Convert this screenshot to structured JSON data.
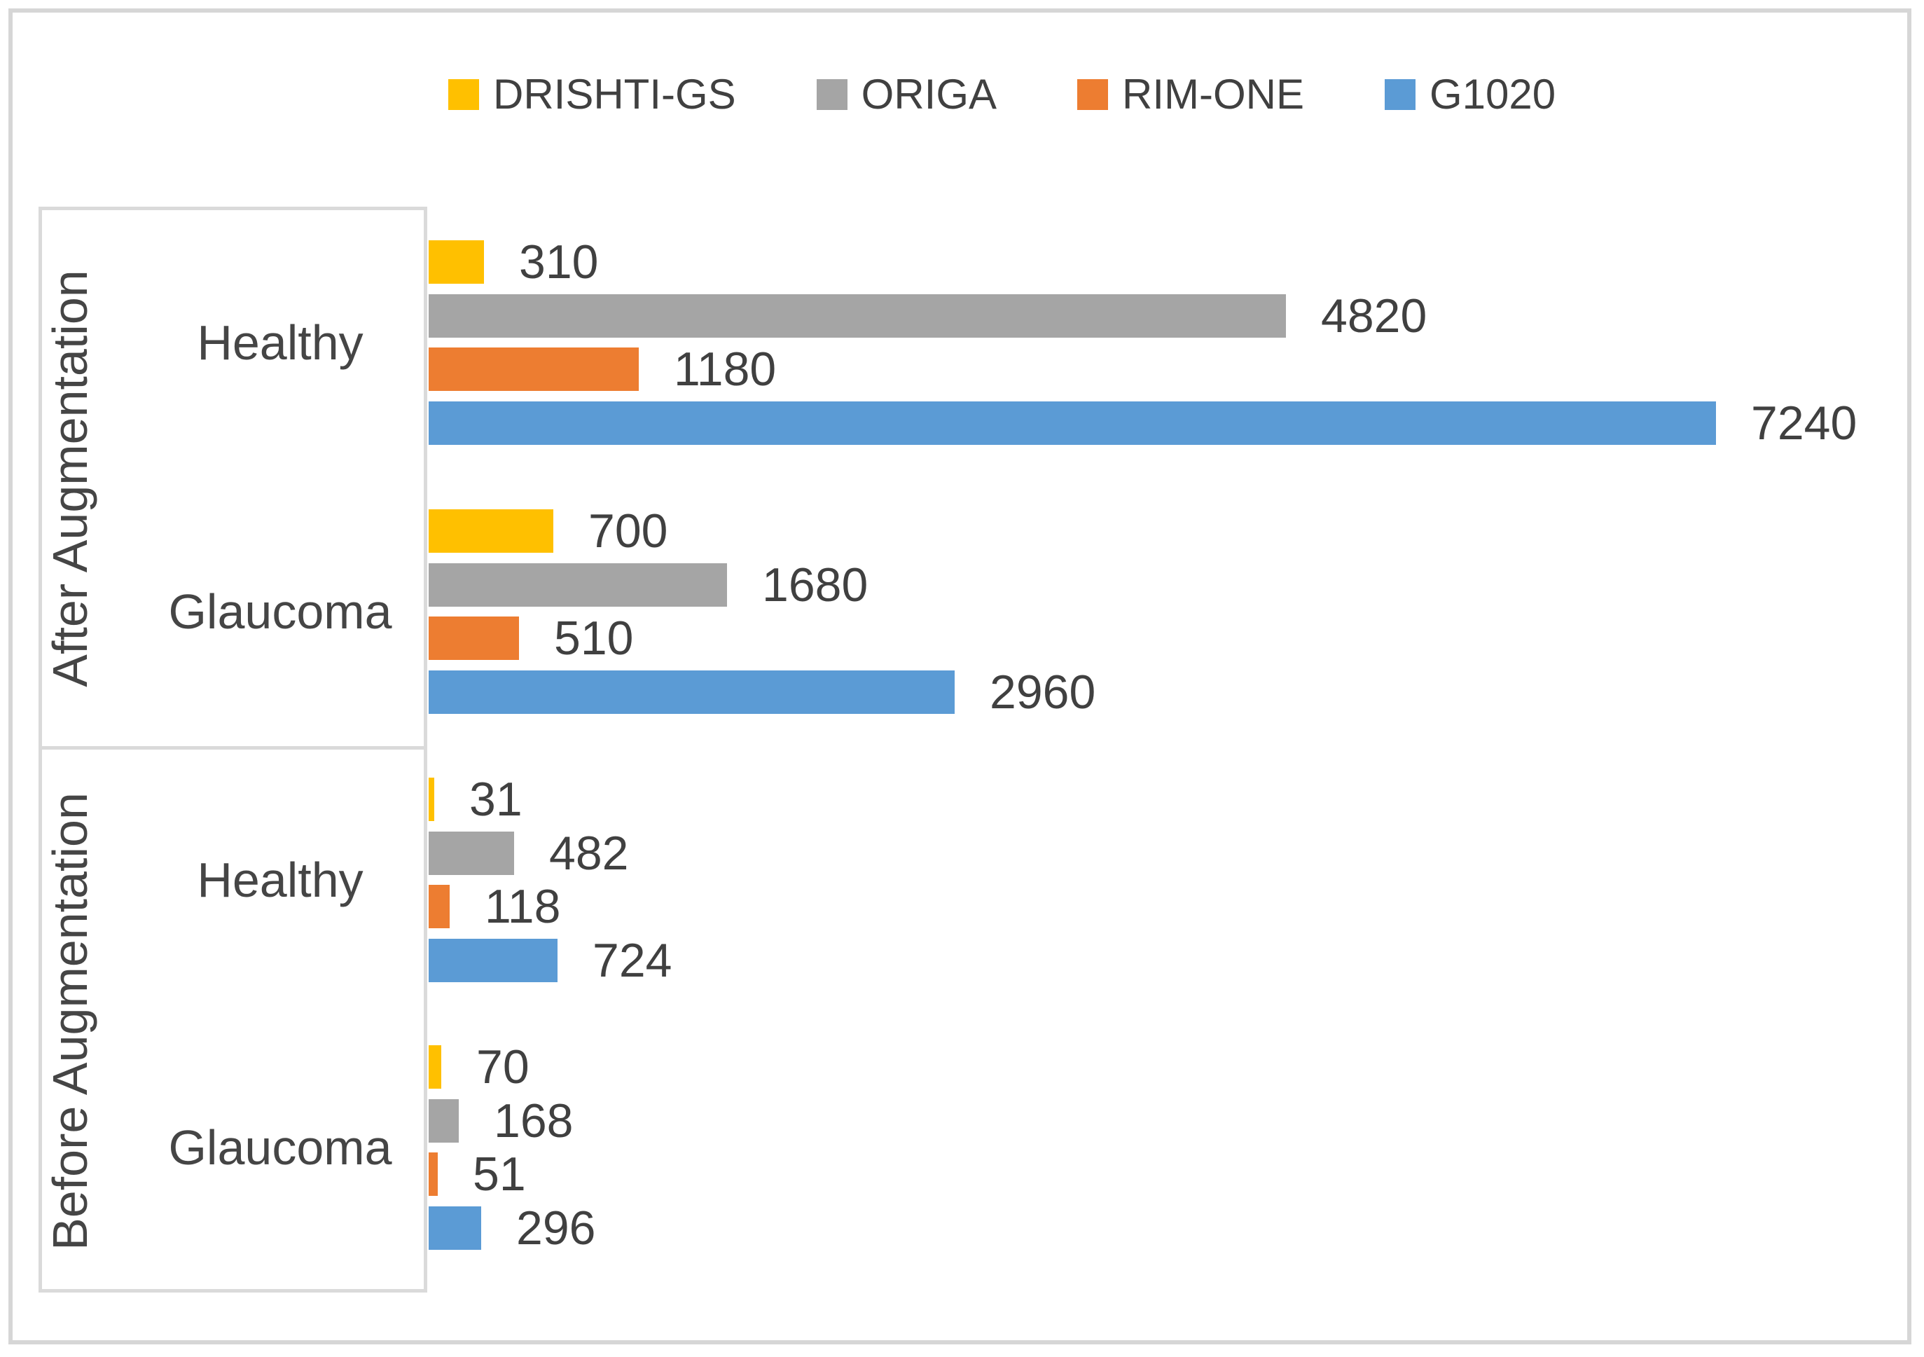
{
  "sections": [
    {
      "label": "After Augmentation"
    },
    {
      "label": "Before Augmentation"
    }
  ],
  "chart_data": {
    "type": "bar",
    "orientation": "horizontal",
    "title": "",
    "legend_position": "top",
    "grid": false,
    "data_labels": true,
    "xlim": [
      0,
      8000
    ],
    "categories": [
      {
        "group": "After Augmentation",
        "label": "Healthy"
      },
      {
        "group": "After Augmentation",
        "label": "Glaucoma"
      },
      {
        "group": "Before Augmentation",
        "label": "Healthy"
      },
      {
        "group": "Before Augmentation",
        "label": "Glaucoma"
      }
    ],
    "series": [
      {
        "name": "DRISHTI-GS",
        "color": "#FFC000",
        "values": [
          310,
          700,
          31,
          70
        ]
      },
      {
        "name": "ORIGA",
        "color": "#A5A5A5",
        "values": [
          4820,
          1680,
          482,
          168
        ]
      },
      {
        "name": "RIM-ONE",
        "color": "#ED7D31",
        "values": [
          1180,
          510,
          118,
          51
        ]
      },
      {
        "name": "G1020",
        "color": "#5B9BD5",
        "values": [
          7240,
          2960,
          724,
          296
        ]
      }
    ],
    "colors": {
      "text": "#404040",
      "axis_line": "#DADADA",
      "frame_border": "#D6D6D6",
      "background": "#FFFFFF"
    }
  }
}
